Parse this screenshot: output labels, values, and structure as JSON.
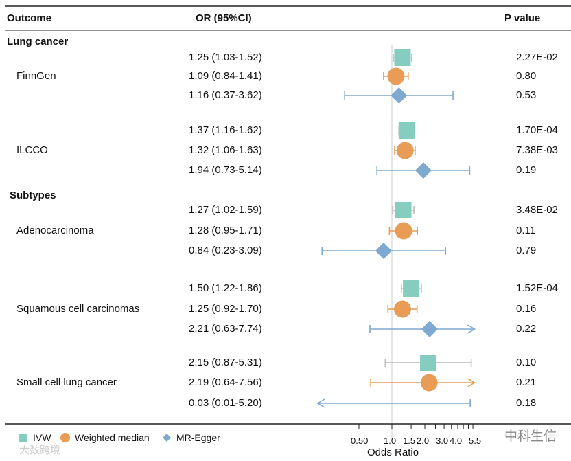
{
  "chart_data": {
    "type": "forest",
    "headers": {
      "outcome": "Outcome",
      "or": "OR (95%CI)",
      "p": "P value"
    },
    "xlabel": "Odds Ratio",
    "xscale": "log",
    "xlim": [
      0.21,
      5.7
    ],
    "reference_line": 1.0,
    "x_ticks": [
      "0.50",
      "1.0",
      "1.5",
      "2.0",
      "3.0",
      "4.0",
      "5.5"
    ],
    "x_tick_values": [
      0.5,
      1.0,
      1.5,
      2.0,
      3.0,
      4.0,
      5.5
    ],
    "minor_ticks": [
      2.5,
      3.5,
      4.5,
      5.0
    ],
    "legend": [
      {
        "label": "IVW",
        "color": "#84cdbf",
        "shape": "square"
      },
      {
        "label": "Weighted median",
        "color": "#e99c55",
        "shape": "circle"
      },
      {
        "label": "MR-Egger",
        "color": "#7ea9d1",
        "shape": "diamond"
      }
    ],
    "sections": [
      {
        "title": "Lung cancer",
        "groups": [
          {
            "label": "FinnGen",
            "rows": [
              {
                "method": 0,
                "or": 1.25,
                "lo": 1.03,
                "hi": 1.52,
                "text": "1.25 (1.03-1.52)",
                "p": "2.27E-02"
              },
              {
                "method": 1,
                "or": 1.09,
                "lo": 0.84,
                "hi": 1.41,
                "text": "1.09 (0.84-1.41)",
                "p": "0.80"
              },
              {
                "method": 2,
                "or": 1.16,
                "lo": 0.37,
                "hi": 3.62,
                "text": "1.16 (0.37-3.62)",
                "p": "0.53"
              }
            ]
          },
          {
            "label": "ILCCO",
            "rows": [
              {
                "method": 0,
                "or": 1.37,
                "lo": 1.16,
                "hi": 1.62,
                "text": "1.37 (1.16-1.62)",
                "p": "1.70E-04"
              },
              {
                "method": 1,
                "or": 1.32,
                "lo": 1.06,
                "hi": 1.63,
                "text": "1.32 (1.06-1.63)",
                "p": "7.38E-03"
              },
              {
                "method": 2,
                "or": 1.94,
                "lo": 0.73,
                "hi": 5.14,
                "text": "1.94 (0.73-5.14)",
                "p": "0.19"
              }
            ]
          }
        ]
      },
      {
        "title": "Subtypes",
        "groups": [
          {
            "label": "Adenocarcinoma",
            "rows": [
              {
                "method": 0,
                "or": 1.27,
                "lo": 1.02,
                "hi": 1.59,
                "text": "1.27 (1.02-1.59)",
                "p": "3.48E-02"
              },
              {
                "method": 1,
                "or": 1.28,
                "lo": 0.95,
                "hi": 1.71,
                "text": "1.28 (0.95-1.71)",
                "p": "0.11"
              },
              {
                "method": 2,
                "or": 0.84,
                "lo": 0.23,
                "hi": 3.09,
                "text": "0.84 (0.23-3.09)",
                "p": "0.79"
              }
            ]
          },
          {
            "label": "Squamous cell carcinomas",
            "rows": [
              {
                "method": 0,
                "or": 1.5,
                "lo": 1.22,
                "hi": 1.86,
                "text": "1.50 (1.22-1.86)",
                "p": "1.52E-04"
              },
              {
                "method": 1,
                "or": 1.25,
                "lo": 0.92,
                "hi": 1.7,
                "text": "1.25 (0.92-1.70)",
                "p": "0.16"
              },
              {
                "method": 2,
                "or": 2.21,
                "lo": 0.63,
                "hi": 7.74,
                "text": "2.21 (0.63-7.74)",
                "p": "0.22"
              }
            ]
          },
          {
            "label": "Small cell lung cancer",
            "rows": [
              {
                "method": 0,
                "or": 2.15,
                "lo": 0.87,
                "hi": 5.31,
                "text": "2.15 (0.87-5.31)",
                "p": "0.10"
              },
              {
                "method": 1,
                "or": 2.19,
                "lo": 0.64,
                "hi": 7.56,
                "text": "2.19 (0.64-7.56)",
                "p": "0.21"
              },
              {
                "method": 2,
                "or": 0.03,
                "lo": 0.01,
                "hi": 5.2,
                "text": "0.03 (0.01-5.20)",
                "p": "0.18"
              }
            ]
          }
        ]
      }
    ]
  },
  "watermarks": [
    "中科生信",
    "大数跨境"
  ]
}
